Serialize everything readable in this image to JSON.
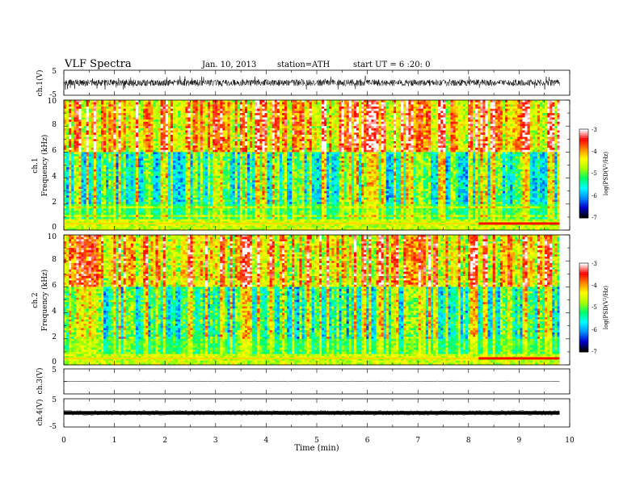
{
  "header": {
    "title": "VLF  Spectra",
    "date": "Jan. 10, 2013",
    "station": "station=ATH",
    "start": "start  UT =   6  :20: 0"
  },
  "chart_data": [
    {
      "type": "line",
      "ylabel": "ch.1(V)",
      "ylim": [
        -5,
        5
      ],
      "yticks": [
        "5",
        "-5"
      ],
      "trace": "noisy waveform, amplitude roughly ±2 V"
    },
    {
      "type": "heatmap",
      "ylabel": "Frequency  (kHz)",
      "ylabel_prefix": "ch.1",
      "ylim": [
        0,
        10
      ],
      "yticks": [
        "0",
        "2",
        "4",
        "6",
        "8",
        "10"
      ],
      "colorbar": {
        "label": "log(PSD(V²/Hz)",
        "range": [
          -7,
          -3
        ],
        "ticks": [
          "-3",
          "-4",
          "-5",
          "-6",
          "-7"
        ]
      }
    },
    {
      "type": "heatmap",
      "ylabel": "Frequency  (kHz)",
      "ylabel_prefix": "ch.2",
      "ylim": [
        0,
        10
      ],
      "yticks": [
        "0",
        "2",
        "4",
        "6",
        "8",
        "10"
      ],
      "colorbar": {
        "label": "log(PSD(V²/Hz)",
        "range": [
          -7,
          -3
        ],
        "ticks": [
          "-3",
          "-4",
          "-5",
          "-6",
          "-7"
        ]
      }
    },
    {
      "type": "line",
      "ylabel": "ch.3(V)",
      "ylim": [
        -5,
        5
      ],
      "yticks": [
        "5"
      ],
      "trace": "flat near 0 V"
    },
    {
      "type": "line",
      "ylabel": "ch.4(V)",
      "ylim": [
        -5,
        5
      ],
      "yticks": [
        "5",
        "-5"
      ],
      "trace": "thick band near 0 V"
    }
  ],
  "xaxis": {
    "label": "Time  (min)",
    "xlim": [
      0,
      10
    ],
    "ticks": [
      "0",
      "1",
      "2",
      "3",
      "4",
      "5",
      "6",
      "7",
      "8",
      "9",
      "10"
    ],
    "data_end": 9.8
  },
  "colors": {
    "scale": [
      "#000000",
      "#0000cc",
      "#0090ff",
      "#00ffff",
      "#00ff66",
      "#aaff00",
      "#ffff00",
      "#ff8800",
      "#ff0000",
      "#ffffff"
    ]
  }
}
